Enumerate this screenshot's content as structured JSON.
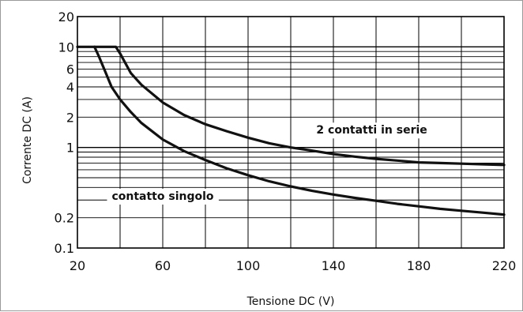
{
  "chart_data": {
    "type": "line",
    "title": "",
    "xlabel": "Tensione DC (V)",
    "ylabel": "Corrente DC (A)",
    "xlim": [
      20,
      220
    ],
    "ylim": [
      0.1,
      20
    ],
    "y_scale": "log",
    "grid": true,
    "x_ticks": [
      20,
      60,
      100,
      140,
      180,
      220
    ],
    "x_tick_labels": [
      "20",
      "60",
      "100",
      "140",
      "180",
      "220"
    ],
    "y_ticks": [
      20,
      10,
      6,
      4,
      2,
      1,
      0.2,
      0.1
    ],
    "y_tick_labels": [
      "20",
      "10",
      "6",
      "4",
      "2",
      "1",
      "0.2",
      "0.1"
    ],
    "series": [
      {
        "name": "2 contatti in serie",
        "x": [
          20,
          38,
          40,
          45,
          50,
          60,
          70,
          80,
          90,
          100,
          110,
          120,
          130,
          140,
          150,
          160,
          170,
          180,
          190,
          200,
          210,
          220
        ],
        "y": [
          10,
          10,
          8.6,
          5.5,
          4.2,
          2.8,
          2.1,
          1.7,
          1.45,
          1.25,
          1.1,
          1.0,
          0.93,
          0.86,
          0.81,
          0.77,
          0.74,
          0.71,
          0.7,
          0.69,
          0.68,
          0.67
        ]
      },
      {
        "name": "contatto singolo",
        "x": [
          28,
          30,
          33,
          36,
          40,
          45,
          50,
          60,
          70,
          80,
          90,
          100,
          110,
          120,
          130,
          140,
          150,
          160,
          170,
          180,
          190,
          200,
          210,
          220
        ],
        "y": [
          10,
          8.1,
          5.7,
          4.0,
          3.0,
          2.25,
          1.75,
          1.2,
          0.92,
          0.75,
          0.62,
          0.53,
          0.46,
          0.41,
          0.37,
          0.34,
          0.315,
          0.295,
          0.275,
          0.26,
          0.245,
          0.235,
          0.225,
          0.215
        ]
      }
    ],
    "annotations": [
      {
        "text": "2 contatti in serie",
        "x": 158,
        "y": 1.5
      },
      {
        "text": "contatto singolo",
        "x": 60,
        "y": 0.33
      }
    ]
  }
}
